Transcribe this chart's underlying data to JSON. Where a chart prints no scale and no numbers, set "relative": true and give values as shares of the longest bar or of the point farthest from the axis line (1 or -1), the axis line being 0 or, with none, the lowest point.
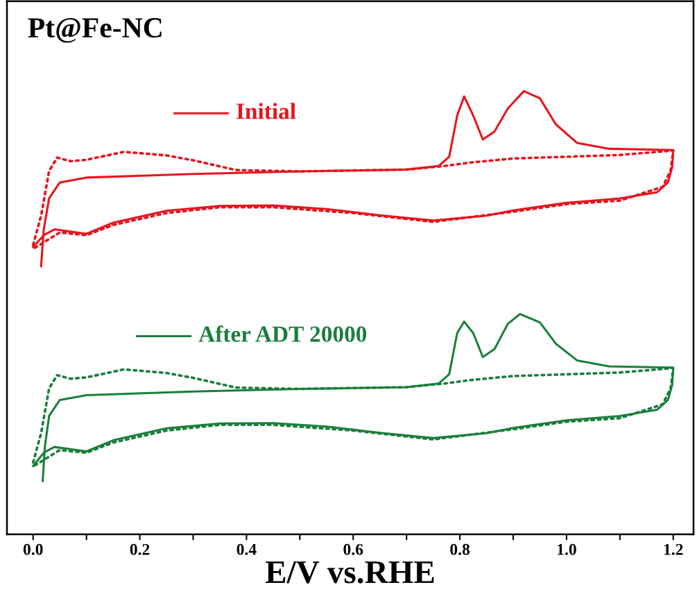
{
  "chart_data": {
    "type": "line",
    "title": "Pt@Fe-NC",
    "xlabel": "E/V vs.RHE",
    "relative": true,
    "tick_labels": "x",
    "grid": false,
    "marker": "none",
    "legend": "center",
    "xlim": [
      -0.049,
      1.238
    ],
    "xticks": [
      {
        "value": 0,
        "label": "0.0"
      },
      {
        "value": 0.1,
        "label": null
      },
      0.2,
      {
        "value": 0.3,
        "label": null
      },
      0.4,
      {
        "value": 0.5,
        "label": null
      },
      0.6,
      {
        "value": 0.7,
        "label": null
      },
      0.8,
      {
        "value": 0.9,
        "label": null
      },
      {
        "value": 1.0,
        "label": "1.0"
      },
      {
        "value": 1.1,
        "label": null
      },
      1.2
    ],
    "series": [
      {
        "name": "Initial",
        "color": "#e8141c",
        "line_style": "solid",
        "x": [
          0.015,
          0.02,
          0.03,
          0.05,
          0.1,
          0.3,
          0.5,
          0.7,
          0.76,
          0.78,
          0.795,
          0.808,
          0.825,
          0.843,
          0.865,
          0.89,
          0.92,
          0.95,
          0.98,
          1.02,
          1.08,
          1.2,
          1.198,
          1.19,
          1.17,
          1.1,
          1.0,
          0.9,
          0.85,
          0.75,
          0.65,
          0.55,
          0.45,
          0.35,
          0.25,
          0.15,
          0.1,
          0.04,
          0.02,
          0.0
        ],
        "values": [
          0.605,
          0.688,
          0.758,
          0.794,
          0.805,
          0.813,
          0.819,
          0.823,
          0.831,
          0.852,
          0.945,
          0.988,
          0.945,
          0.891,
          0.909,
          0.961,
          1.0,
          0.984,
          0.925,
          0.883,
          0.87,
          0.867,
          0.828,
          0.794,
          0.772,
          0.758,
          0.748,
          0.731,
          0.719,
          0.708,
          0.72,
          0.734,
          0.742,
          0.741,
          0.73,
          0.703,
          0.678,
          0.688,
          0.675,
          0.648
        ]
      },
      {
        "color": "#e8141c",
        "line_style": "dotted",
        "x": [
          0.0,
          0.015,
          0.03,
          0.045,
          0.07,
          0.1,
          0.17,
          0.25,
          0.3,
          0.38,
          0.5,
          0.7,
          0.77,
          0.82,
          0.9,
          1.0,
          1.1,
          1.2,
          1.195,
          1.18,
          1.1,
          1.0,
          0.9,
          0.75,
          0.6,
          0.45,
          0.35,
          0.25,
          0.15,
          0.1,
          0.05,
          0.0
        ],
        "values": [
          0.653,
          0.719,
          0.82,
          0.85,
          0.842,
          0.845,
          0.863,
          0.855,
          0.844,
          0.822,
          0.819,
          0.823,
          0.831,
          0.839,
          0.848,
          0.852,
          0.856,
          0.866,
          0.82,
          0.784,
          0.753,
          0.745,
          0.728,
          0.705,
          0.725,
          0.738,
          0.738,
          0.725,
          0.698,
          0.675,
          0.681,
          0.644
        ]
      },
      {
        "name": "After ADT 20000",
        "color": "#1a7f3c",
        "line_style": "solid",
        "x": [
          0.018,
          0.022,
          0.03,
          0.05,
          0.1,
          0.3,
          0.5,
          0.7,
          0.76,
          0.78,
          0.795,
          0.808,
          0.825,
          0.843,
          0.865,
          0.89,
          0.913,
          0.95,
          0.98,
          1.02,
          1.08,
          1.2,
          1.198,
          1.19,
          1.17,
          1.1,
          1.0,
          0.9,
          0.85,
          0.75,
          0.65,
          0.55,
          0.45,
          0.35,
          0.25,
          0.15,
          0.1,
          0.04,
          0.02,
          0.0
        ],
        "values": [
          0.12,
          0.197,
          0.267,
          0.303,
          0.314,
          0.322,
          0.328,
          0.332,
          0.34,
          0.361,
          0.454,
          0.48,
          0.454,
          0.4,
          0.418,
          0.475,
          0.497,
          0.478,
          0.43,
          0.392,
          0.379,
          0.376,
          0.337,
          0.303,
          0.281,
          0.267,
          0.257,
          0.24,
          0.228,
          0.217,
          0.229,
          0.243,
          0.251,
          0.25,
          0.239,
          0.212,
          0.187,
          0.197,
          0.184,
          0.154
        ]
      },
      {
        "color": "#1a7f3c",
        "line_style": "dotted",
        "x": [
          0.0,
          0.015,
          0.03,
          0.045,
          0.07,
          0.1,
          0.17,
          0.25,
          0.3,
          0.38,
          0.5,
          0.7,
          0.77,
          0.82,
          0.9,
          1.0,
          1.1,
          1.2,
          1.195,
          1.18,
          1.1,
          1.0,
          0.9,
          0.75,
          0.6,
          0.45,
          0.35,
          0.25,
          0.15,
          0.1,
          0.05,
          0.0
        ],
        "values": [
          0.162,
          0.228,
          0.329,
          0.359,
          0.351,
          0.354,
          0.372,
          0.364,
          0.353,
          0.331,
          0.328,
          0.332,
          0.34,
          0.348,
          0.357,
          0.361,
          0.365,
          0.375,
          0.329,
          0.293,
          0.262,
          0.254,
          0.237,
          0.214,
          0.234,
          0.247,
          0.247,
          0.234,
          0.207,
          0.184,
          0.19,
          0.153
        ]
      }
    ]
  }
}
